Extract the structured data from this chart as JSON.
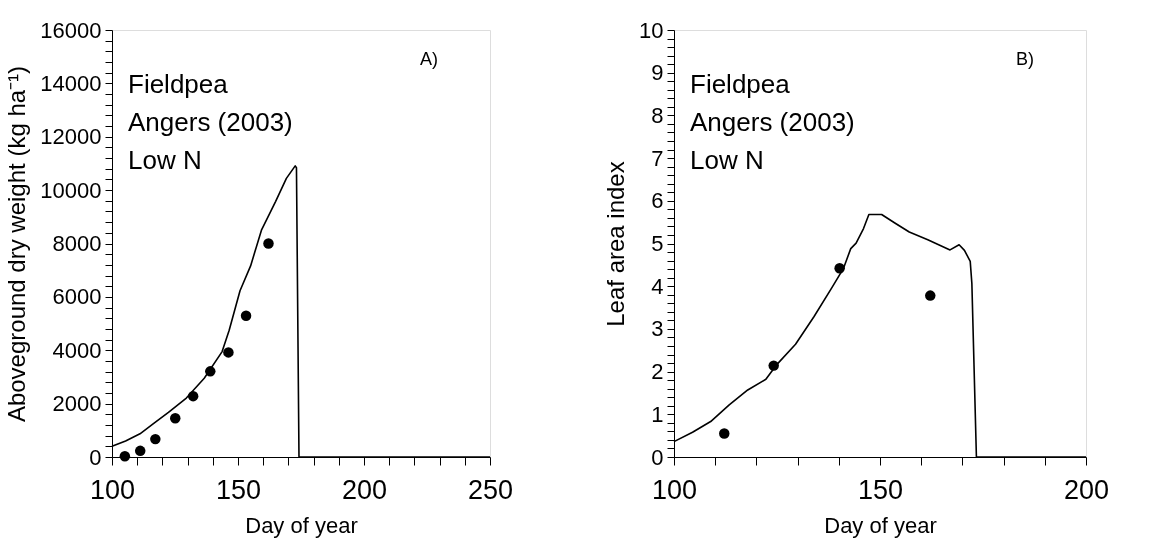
{
  "chart_data": [
    {
      "type": "line",
      "xlabel": "Day of year",
      "ylabel": "Aboveground dry weight  (kg ha⁻¹)",
      "xlim": [
        100,
        250
      ],
      "xticks": [
        100,
        {
          "value": 110,
          "label": null
        },
        {
          "value": 120,
          "label": null
        },
        {
          "value": 130,
          "label": null
        },
        {
          "value": 140,
          "label": null
        },
        150,
        {
          "value": 160,
          "label": null
        },
        {
          "value": 170,
          "label": null
        },
        {
          "value": 180,
          "label": null
        },
        {
          "value": 190,
          "label": null
        },
        200,
        {
          "value": 210,
          "label": null
        },
        {
          "value": 220,
          "label": null
        },
        {
          "value": 230,
          "label": null
        },
        {
          "value": 240,
          "label": null
        },
        250
      ],
      "ylim": [
        0,
        16000
      ],
      "yticks": [
        0,
        {
          "value": 400,
          "label": null
        },
        {
          "value": 800,
          "label": null
        },
        {
          "value": 1200,
          "label": null
        },
        {
          "value": 1600,
          "label": null
        },
        2000,
        {
          "value": 2400,
          "label": null
        },
        {
          "value": 2800,
          "label": null
        },
        {
          "value": 3200,
          "label": null
        },
        {
          "value": 3600,
          "label": null
        },
        4000,
        {
          "value": 4400,
          "label": null
        },
        {
          "value": 4800,
          "label": null
        },
        {
          "value": 5200,
          "label": null
        },
        {
          "value": 5600,
          "label": null
        },
        6000,
        {
          "value": 6400,
          "label": null
        },
        {
          "value": 6800,
          "label": null
        },
        {
          "value": 7200,
          "label": null
        },
        {
          "value": 7600,
          "label": null
        },
        8000,
        {
          "value": 8400,
          "label": null
        },
        {
          "value": 8800,
          "label": null
        },
        {
          "value": 9200,
          "label": null
        },
        {
          "value": 9600,
          "label": null
        },
        10000,
        {
          "value": 10400,
          "label": null
        },
        {
          "value": 10800,
          "label": null
        },
        {
          "value": 11200,
          "label": null
        },
        {
          "value": 11600,
          "label": null
        },
        12000,
        {
          "value": 12400,
          "label": null
        },
        {
          "value": 12800,
          "label": null
        },
        {
          "value": 13200,
          "label": null
        },
        {
          "value": 13600,
          "label": null
        },
        14000,
        {
          "value": 14400,
          "label": null
        },
        {
          "value": 14800,
          "label": null
        },
        {
          "value": 15200,
          "label": null
        },
        {
          "value": 15600,
          "label": null
        },
        16000
      ],
      "annotations": [
        "Fieldpea",
        "Angers (2003)",
        "Low N",
        "A)"
      ],
      "grid": false,
      "line_style": "solid",
      "series": [
        {
          "type": "line",
          "color": "#000000",
          "marker": "none",
          "x": [
            100,
            105.4,
            111.1,
            116.7,
            122.4,
            129.5,
            136.6,
            143.7,
            146.5,
            150.8,
            155,
            159.3,
            164.9,
            169.2,
            172.7,
            173.2,
            174.2,
            250
          ],
          "values": [
            400,
            600,
            870,
            1270,
            1670,
            2210,
            2950,
            3950,
            4750,
            6230,
            7160,
            8500,
            9570,
            10440,
            10910,
            10840,
            0,
            0
          ]
        },
        {
          "type": "scatter",
          "color": "#000000",
          "marker": "circle",
          "x": [
            105.1,
            111.2,
            117.2,
            125.1,
            132.2,
            139.0,
            146.2,
            153.2,
            162.1
          ],
          "values": [
            30,
            230,
            670,
            1450,
            2280,
            3210,
            3920,
            5290,
            8000
          ]
        }
      ]
    },
    {
      "type": "line",
      "xlabel": "Day of year",
      "ylabel": "Leaf area index",
      "xlim": [
        100,
        200
      ],
      "xticks": [
        100,
        {
          "value": 110,
          "label": null
        },
        {
          "value": 120,
          "label": null
        },
        {
          "value": 130,
          "label": null
        },
        {
          "value": 140,
          "label": null
        },
        150,
        {
          "value": 160,
          "label": null
        },
        {
          "value": 170,
          "label": null
        },
        {
          "value": 180,
          "label": null
        },
        {
          "value": 190,
          "label": null
        },
        200
      ],
      "ylim": [
        0,
        10
      ],
      "yticks": [
        0,
        {
          "value": 0.2,
          "label": null
        },
        {
          "value": 0.4,
          "label": null
        },
        {
          "value": 0.6,
          "label": null
        },
        {
          "value": 0.8,
          "label": null
        },
        1,
        {
          "value": 1.2,
          "label": null
        },
        {
          "value": 1.4,
          "label": null
        },
        {
          "value": 1.6,
          "label": null
        },
        {
          "value": 1.8,
          "label": null
        },
        2,
        {
          "value": 2.2,
          "label": null
        },
        {
          "value": 2.4,
          "label": null
        },
        {
          "value": 2.6,
          "label": null
        },
        {
          "value": 2.8,
          "label": null
        },
        3,
        {
          "value": 3.2,
          "label": null
        },
        {
          "value": 3.4,
          "label": null
        },
        {
          "value": 3.6,
          "label": null
        },
        {
          "value": 3.8,
          "label": null
        },
        4,
        {
          "value": 4.2,
          "label": null
        },
        {
          "value": 4.4,
          "label": null
        },
        {
          "value": 4.6,
          "label": null
        },
        {
          "value": 4.8,
          "label": null
        },
        5,
        {
          "value": 5.2,
          "label": null
        },
        {
          "value": 5.4,
          "label": null
        },
        {
          "value": 5.6,
          "label": null
        },
        {
          "value": 5.8,
          "label": null
        },
        6,
        {
          "value": 6.2,
          "label": null
        },
        {
          "value": 6.4,
          "label": null
        },
        {
          "value": 6.6,
          "label": null
        },
        {
          "value": 6.8,
          "label": null
        },
        7,
        {
          "value": 7.2,
          "label": null
        },
        {
          "value": 7.4,
          "label": null
        },
        {
          "value": 7.6,
          "label": null
        },
        {
          "value": 7.8,
          "label": null
        },
        8,
        {
          "value": 8.2,
          "label": null
        },
        {
          "value": 8.4,
          "label": null
        },
        {
          "value": 8.6,
          "label": null
        },
        {
          "value": 8.8,
          "label": null
        },
        9,
        {
          "value": 9.2,
          "label": null
        },
        {
          "value": 9.4,
          "label": null
        },
        {
          "value": 9.6,
          "label": null
        },
        {
          "value": 9.8,
          "label": null
        },
        10
      ],
      "annotations": [
        "Fieldpea",
        "Angers (2003)",
        "Low N",
        "B)"
      ],
      "grid": false,
      "line_style": "solid",
      "series": [
        {
          "type": "line",
          "color": "#000000",
          "marker": "none",
          "x": [
            100,
            104.5,
            108.9,
            113.4,
            117.9,
            122.3,
            125,
            129.5,
            134,
            138.4,
            141.1,
            142.9,
            144.2,
            146,
            147.3,
            150.4,
            153.6,
            157.1,
            161.6,
            167,
            169.2,
            170.5,
            171.9,
            172.3,
            173.4,
            200
          ],
          "values": [
            0.36,
            0.58,
            0.83,
            1.22,
            1.57,
            1.82,
            2.17,
            2.64,
            3.29,
            3.98,
            4.41,
            4.88,
            5.01,
            5.35,
            5.68,
            5.68,
            5.48,
            5.27,
            5.09,
            4.85,
            4.97,
            4.84,
            4.58,
            4.06,
            0,
            0
          ]
        },
        {
          "type": "scatter",
          "color": "#000000",
          "marker": "circle",
          "x": [
            112.2,
            124.2,
            140.2,
            162.2
          ],
          "values": [
            0.55,
            2.14,
            4.42,
            3.78
          ]
        }
      ]
    }
  ]
}
